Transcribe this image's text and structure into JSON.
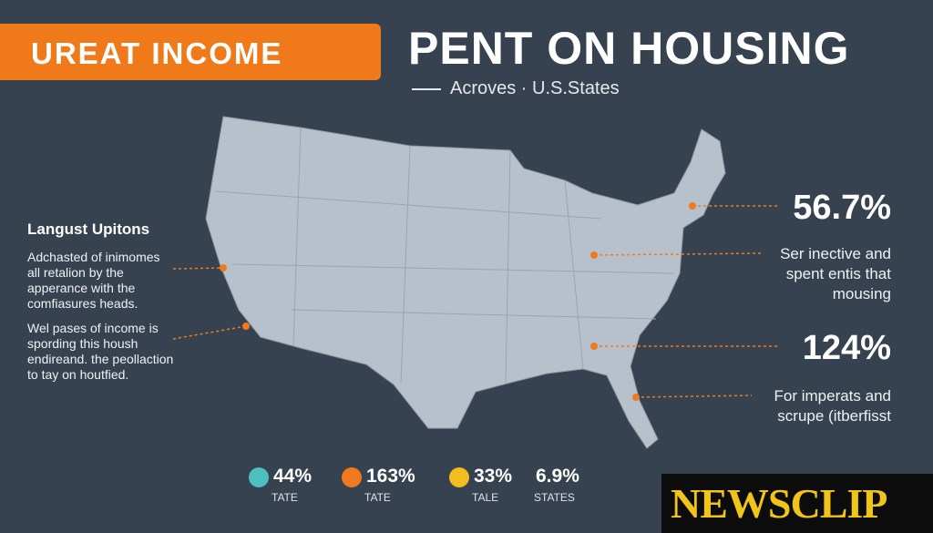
{
  "header": {
    "badge": "UREAT INCOME",
    "title": "PENT ON HOUSING",
    "subtitle": "Acroves · U.S.States"
  },
  "left_panel": {
    "heading": "Langust Upitons",
    "paragraphs": [
      [
        "Adchasted of inimomes",
        "all retalion by the",
        "apperance with the",
        "comfiasures heads."
      ],
      [
        "Wel pases of income is",
        "spording this housh",
        "endireand. the peollaction",
        "to tay on houtfied."
      ]
    ]
  },
  "callouts": [
    {
      "value": "56.7%"
    },
    {
      "lines": [
        "Ser inective and",
        "spent entis that",
        "mousing"
      ]
    },
    {
      "value": "124%"
    },
    {
      "lines": [
        "For imperats and",
        "scrupe (itberfisst"
      ]
    }
  ],
  "legend": [
    {
      "value": "44%",
      "label": "TATE",
      "color": "#4dbfbe"
    },
    {
      "value": "163%",
      "label": "TATE",
      "color": "#ef7a1f"
    },
    {
      "value": "33%",
      "label": "TALE",
      "color": "#f2bd1d"
    },
    {
      "value": "6.9%",
      "label": "STATES"
    }
  ],
  "watermark": "NEWSCLIP"
}
